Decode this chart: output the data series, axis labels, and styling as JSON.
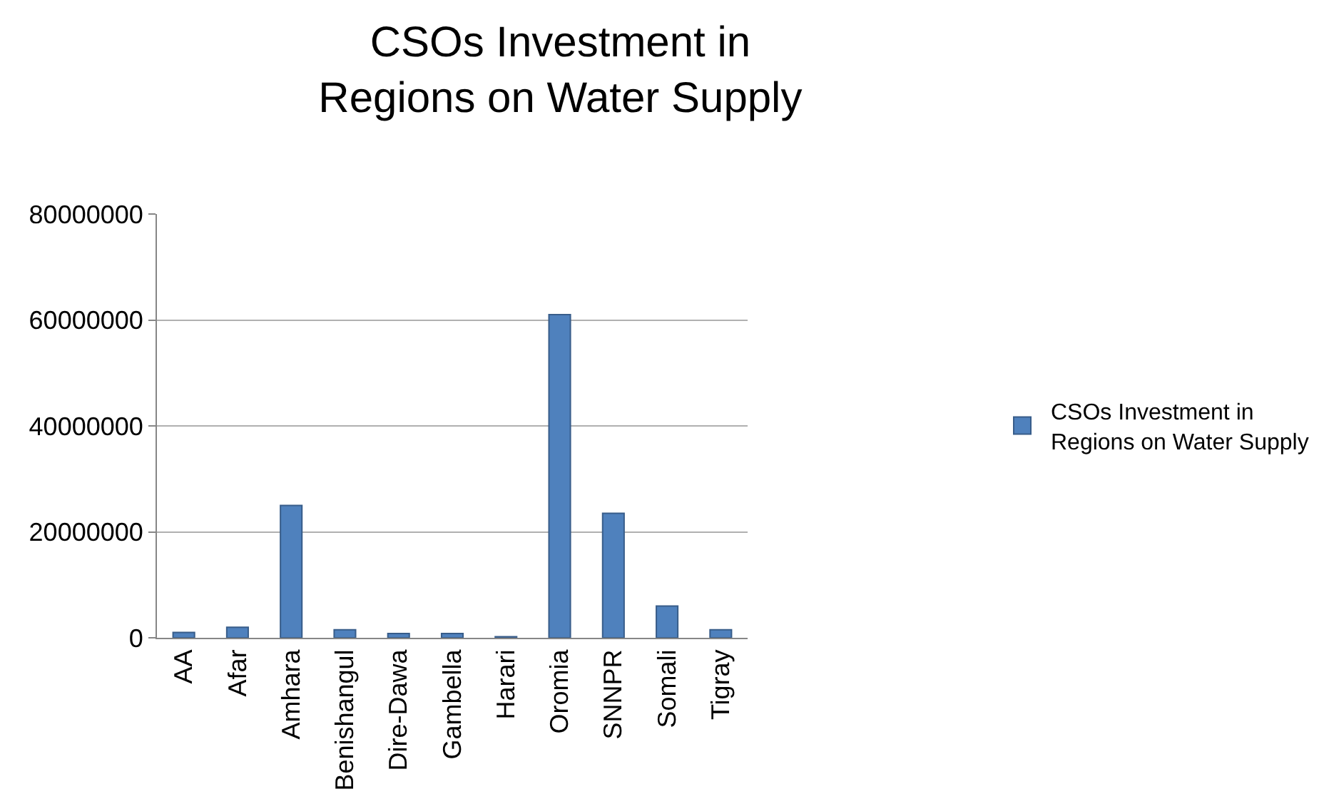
{
  "chart_data": {
    "type": "bar",
    "title": "CSOs Investment in\nRegions on Water Supply",
    "categories": [
      "AA",
      "Afar",
      "Amhara",
      "Benishangul",
      "Dire-Dawa",
      "Gambella",
      "Harari",
      "Oromia",
      "SNNPR",
      "Somali",
      "Tigray"
    ],
    "series": [
      {
        "name": "CSOs Investment in\nRegions on Water Supply",
        "color": "#4f81bd",
        "values": [
          1000000,
          2000000,
          25000000,
          1500000,
          800000,
          800000,
          200000,
          61000000,
          23500000,
          6000000,
          1500000
        ]
      }
    ],
    "ylim": [
      0,
      80000000
    ],
    "yticks": [
      0,
      20000000,
      40000000,
      60000000,
      80000000
    ],
    "grid": "y",
    "legend": "right"
  }
}
